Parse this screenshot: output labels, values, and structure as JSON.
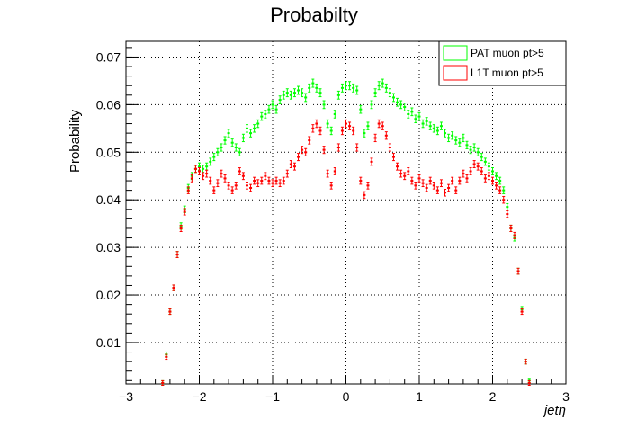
{
  "chart_data": {
    "type": "scatter",
    "title": "Probabilty",
    "xlabel": "jetη",
    "ylabel": "Probability",
    "xlim": [
      -3,
      3
    ],
    "ylim": [
      0.0013,
      0.0733
    ],
    "xticks": [
      -3,
      -2,
      -1,
      0,
      1,
      2,
      3
    ],
    "xtick_labels": [
      "−3",
      "−2",
      "−1",
      "0",
      "1",
      "2",
      "3"
    ],
    "yticks": [
      0.01,
      0.02,
      0.03,
      0.04,
      0.05,
      0.06,
      0.07
    ],
    "ytick_labels": [
      "0.01",
      "0.02",
      "0.03",
      "0.04",
      "0.05",
      "0.06",
      "0.07"
    ],
    "grid": true,
    "legend_position": "top-right",
    "series": [
      {
        "name": "PAT muon pt>5",
        "color": "#00ff00",
        "points": [
          [
            -2.5,
            0.0015
          ],
          [
            -2.45,
            0.0075
          ],
          [
            -2.4,
            0.0165
          ],
          [
            -2.35,
            0.0215
          ],
          [
            -2.3,
            0.0285
          ],
          [
            -2.25,
            0.0345
          ],
          [
            -2.2,
            0.038
          ],
          [
            -2.15,
            0.0425
          ],
          [
            -2.1,
            0.045
          ],
          [
            -2.05,
            0.0465
          ],
          [
            -2.0,
            0.047
          ],
          [
            -1.95,
            0.0465
          ],
          [
            -1.9,
            0.047
          ],
          [
            -1.85,
            0.048
          ],
          [
            -1.8,
            0.049
          ],
          [
            -1.75,
            0.05
          ],
          [
            -1.7,
            0.051
          ],
          [
            -1.65,
            0.0525
          ],
          [
            -1.6,
            0.054
          ],
          [
            -1.55,
            0.052
          ],
          [
            -1.5,
            0.051
          ],
          [
            -1.45,
            0.05
          ],
          [
            -1.4,
            0.053
          ],
          [
            -1.35,
            0.055
          ],
          [
            -1.3,
            0.054
          ],
          [
            -1.25,
            0.055
          ],
          [
            -1.2,
            0.056
          ],
          [
            -1.15,
            0.0575
          ],
          [
            -1.1,
            0.058
          ],
          [
            -1.05,
            0.059
          ],
          [
            -1.0,
            0.06
          ],
          [
            -0.95,
            0.059
          ],
          [
            -0.9,
            0.061
          ],
          [
            -0.85,
            0.062
          ],
          [
            -0.8,
            0.0625
          ],
          [
            -0.75,
            0.062
          ],
          [
            -0.7,
            0.0625
          ],
          [
            -0.65,
            0.063
          ],
          [
            -0.6,
            0.0625
          ],
          [
            -0.55,
            0.0615
          ],
          [
            -0.5,
            0.0635
          ],
          [
            -0.45,
            0.0645
          ],
          [
            -0.4,
            0.0635
          ],
          [
            -0.35,
            0.0625
          ],
          [
            -0.3,
            0.06
          ],
          [
            -0.25,
            0.056
          ],
          [
            -0.2,
            0.0545
          ],
          [
            -0.15,
            0.058
          ],
          [
            -0.1,
            0.062
          ],
          [
            -0.05,
            0.0635
          ],
          [
            0.0,
            0.064
          ],
          [
            0.05,
            0.064
          ],
          [
            0.1,
            0.0635
          ],
          [
            0.15,
            0.063
          ],
          [
            0.2,
            0.059
          ],
          [
            0.25,
            0.054
          ],
          [
            0.3,
            0.0555
          ],
          [
            0.35,
            0.06
          ],
          [
            0.4,
            0.0625
          ],
          [
            0.45,
            0.064
          ],
          [
            0.5,
            0.0645
          ],
          [
            0.55,
            0.0635
          ],
          [
            0.6,
            0.0625
          ],
          [
            0.65,
            0.0615
          ],
          [
            0.7,
            0.0605
          ],
          [
            0.75,
            0.06
          ],
          [
            0.8,
            0.0595
          ],
          [
            0.85,
            0.058
          ],
          [
            0.9,
            0.0585
          ],
          [
            0.95,
            0.057
          ],
          [
            1.0,
            0.0575
          ],
          [
            1.05,
            0.056
          ],
          [
            1.1,
            0.0565
          ],
          [
            1.15,
            0.0555
          ],
          [
            1.2,
            0.055
          ],
          [
            1.25,
            0.0545
          ],
          [
            1.3,
            0.0555
          ],
          [
            1.35,
            0.054
          ],
          [
            1.4,
            0.053
          ],
          [
            1.45,
            0.0535
          ],
          [
            1.5,
            0.0525
          ],
          [
            1.55,
            0.052
          ],
          [
            1.6,
            0.053
          ],
          [
            1.65,
            0.0515
          ],
          [
            1.7,
            0.0505
          ],
          [
            1.75,
            0.051
          ],
          [
            1.8,
            0.05
          ],
          [
            1.85,
            0.049
          ],
          [
            1.9,
            0.048
          ],
          [
            1.95,
            0.047
          ],
          [
            2.0,
            0.046
          ],
          [
            2.05,
            0.045
          ],
          [
            2.1,
            0.044
          ],
          [
            2.15,
            0.042
          ],
          [
            2.2,
            0.0385
          ],
          [
            2.25,
            0.034
          ],
          [
            2.3,
            0.032
          ],
          [
            2.35,
            0.025
          ],
          [
            2.4,
            0.017
          ],
          [
            2.45,
            0.006
          ],
          [
            2.5,
            0.002
          ]
        ]
      },
      {
        "name": "L1T muon pt>5",
        "color": "#ff0000",
        "points": [
          [
            -2.5,
            0.0015
          ],
          [
            -2.45,
            0.007
          ],
          [
            -2.4,
            0.0165
          ],
          [
            -2.35,
            0.0215
          ],
          [
            -2.3,
            0.0285
          ],
          [
            -2.25,
            0.034
          ],
          [
            -2.2,
            0.0375
          ],
          [
            -2.15,
            0.042
          ],
          [
            -2.1,
            0.0445
          ],
          [
            -2.05,
            0.0465
          ],
          [
            -2.0,
            0.046
          ],
          [
            -1.95,
            0.045
          ],
          [
            -1.9,
            0.0455
          ],
          [
            -1.85,
            0.044
          ],
          [
            -1.8,
            0.042
          ],
          [
            -1.75,
            0.0435
          ],
          [
            -1.7,
            0.0455
          ],
          [
            -1.65,
            0.0445
          ],
          [
            -1.6,
            0.043
          ],
          [
            -1.55,
            0.042
          ],
          [
            -1.5,
            0.043
          ],
          [
            -1.45,
            0.046
          ],
          [
            -1.4,
            0.045
          ],
          [
            -1.35,
            0.043
          ],
          [
            -1.3,
            0.0425
          ],
          [
            -1.25,
            0.044
          ],
          [
            -1.2,
            0.0435
          ],
          [
            -1.15,
            0.044
          ],
          [
            -1.1,
            0.045
          ],
          [
            -1.05,
            0.044
          ],
          [
            -1.0,
            0.0435
          ],
          [
            -0.95,
            0.044
          ],
          [
            -0.9,
            0.0435
          ],
          [
            -0.85,
            0.044
          ],
          [
            -0.8,
            0.0455
          ],
          [
            -0.75,
            0.0475
          ],
          [
            -0.7,
            0.047
          ],
          [
            -0.65,
            0.049
          ],
          [
            -0.6,
            0.0505
          ],
          [
            -0.55,
            0.05
          ],
          [
            -0.5,
            0.0525
          ],
          [
            -0.45,
            0.055
          ],
          [
            -0.4,
            0.056
          ],
          [
            -0.35,
            0.0545
          ],
          [
            -0.3,
            0.0505
          ],
          [
            -0.25,
            0.0455
          ],
          [
            -0.2,
            0.043
          ],
          [
            -0.15,
            0.046
          ],
          [
            -0.1,
            0.051
          ],
          [
            -0.05,
            0.0545
          ],
          [
            0.0,
            0.056
          ],
          [
            0.05,
            0.0555
          ],
          [
            0.1,
            0.0545
          ],
          [
            0.15,
            0.051
          ],
          [
            0.2,
            0.044
          ],
          [
            0.25,
            0.041
          ],
          [
            0.3,
            0.043
          ],
          [
            0.35,
            0.048
          ],
          [
            0.4,
            0.053
          ],
          [
            0.45,
            0.056
          ],
          [
            0.5,
            0.0555
          ],
          [
            0.55,
            0.0535
          ],
          [
            0.6,
            0.051
          ],
          [
            0.65,
            0.049
          ],
          [
            0.7,
            0.047
          ],
          [
            0.75,
            0.0455
          ],
          [
            0.8,
            0.045
          ],
          [
            0.85,
            0.046
          ],
          [
            0.9,
            0.044
          ],
          [
            0.95,
            0.043
          ],
          [
            1.0,
            0.0445
          ],
          [
            1.05,
            0.0435
          ],
          [
            1.1,
            0.0425
          ],
          [
            1.15,
            0.044
          ],
          [
            1.2,
            0.043
          ],
          [
            1.25,
            0.042
          ],
          [
            1.3,
            0.0435
          ],
          [
            1.35,
            0.0415
          ],
          [
            1.4,
            0.0425
          ],
          [
            1.45,
            0.044
          ],
          [
            1.5,
            0.042
          ],
          [
            1.55,
            0.044
          ],
          [
            1.6,
            0.0455
          ],
          [
            1.65,
            0.0445
          ],
          [
            1.7,
            0.046
          ],
          [
            1.75,
            0.0475
          ],
          [
            1.8,
            0.047
          ],
          [
            1.85,
            0.046
          ],
          [
            1.9,
            0.0445
          ],
          [
            1.95,
            0.045
          ],
          [
            2.0,
            0.044
          ],
          [
            2.05,
            0.043
          ],
          [
            2.1,
            0.042
          ],
          [
            2.15,
            0.04
          ],
          [
            2.2,
            0.037
          ],
          [
            2.25,
            0.034
          ],
          [
            2.3,
            0.0325
          ],
          [
            2.35,
            0.025
          ],
          [
            2.4,
            0.0165
          ],
          [
            2.45,
            0.006
          ],
          [
            2.5,
            0.0015
          ]
        ]
      }
    ]
  }
}
